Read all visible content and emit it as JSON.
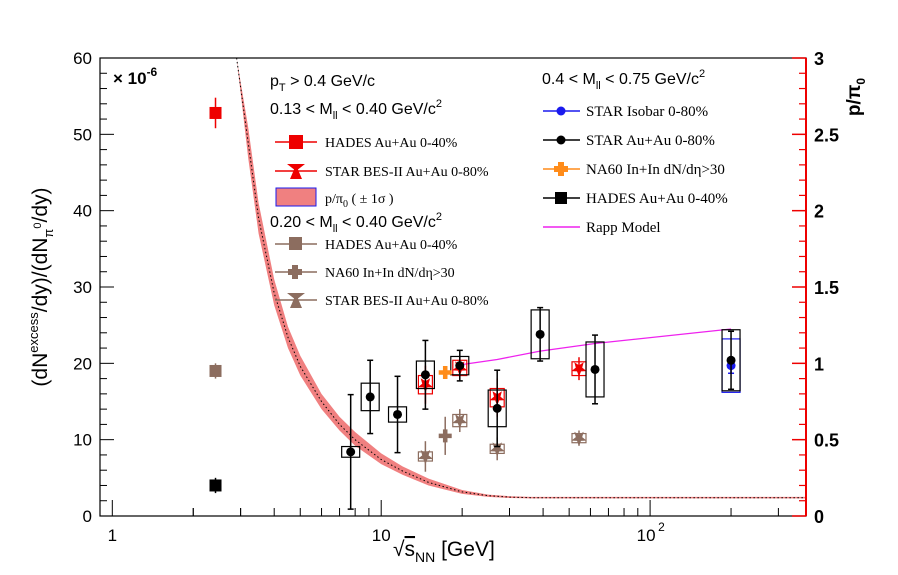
{
  "chart_data": {
    "type": "scatter",
    "x_axis": {
      "label": "√s_NN [GeV]",
      "label_parts": [
        "√",
        "s",
        "NN",
        " [GeV]"
      ],
      "scale": "log",
      "range": [
        0.9,
        380
      ],
      "tick_labels": [
        "1",
        "10",
        "10",
        "2"
      ]
    },
    "y_axis_left": {
      "label_parts": [
        "(dN",
        "excess",
        "/dy)/(dN",
        "π",
        "0",
        "/dy)"
      ],
      "range": [
        0,
        60
      ],
      "ticks": [
        0,
        10,
        20,
        30,
        40,
        50,
        60
      ],
      "multiplier": "× 10",
      "multiplier_exp": "-6"
    },
    "y_axis_right": {
      "label_parts": [
        "p/π",
        "0"
      ],
      "range": [
        0,
        3
      ],
      "ticks": [
        "0",
        "0.5",
        "1",
        "1.5",
        "2",
        "2.5",
        "3"
      ],
      "color": "#ee0000"
    },
    "headers": {
      "pt_cut": [
        "p",
        "T",
        " > 0.4 GeV/c"
      ],
      "low_mass": [
        "0.13 < M",
        "ll",
        " < 0.40 GeV/c",
        "2"
      ],
      "mid_mass": [
        "0.20 < M",
        "ll",
        " < 0.40 GeV/c",
        "2"
      ],
      "rho_mass": [
        "0.4 < M",
        "ll",
        " < 0.75 GeV/c",
        "2"
      ]
    },
    "legend": {
      "low_mass": [
        "HADES Au+Au 0-40%",
        "STAR BES-II Au+Au 0-80%",
        "p/π",
        "0",
        " ( ± 1σ )"
      ],
      "mid_mass": [
        "HADES Au+Au 0-40%",
        "NA60 In+In dN/dη>30",
        "STAR BES-II Au+Au 0-80%"
      ],
      "rho_mass": [
        "STAR Isobar 0-80%",
        "STAR Au+Au 0-80%",
        "NA60 In+In dN/dη>30",
        "HADES Au+Au 0-40%",
        "Rapp Model"
      ]
    },
    "colors": {
      "red": "#ee0000",
      "brown": "#8c6d5f",
      "black": "#000000",
      "blue": "#1a1aee",
      "orange": "#ff8c1a",
      "rapp": "#ee22ee",
      "band": "#f08080"
    },
    "series": [
      {
        "name": "HADES Au+Au 0-40%",
        "group": "0.13-0.40",
        "marker": "square",
        "color": "#ee0000",
        "points": [
          {
            "x": 2.42,
            "y": 52.8,
            "err": 2
          }
        ]
      },
      {
        "name": "STAR BES-II Au+Au 0-80%",
        "group": "0.13-0.40",
        "marker": "star",
        "color": "#ee0000",
        "points": [
          {
            "x": 14.6,
            "y": 17.2,
            "err": 2.5,
            "sys": 1.2
          },
          {
            "x": 19.6,
            "y": 19.4,
            "err": 1.5,
            "sys": 1.0
          },
          {
            "x": 27,
            "y": 15.5,
            "err": 2.5,
            "sys": 1.2
          },
          {
            "x": 54.4,
            "y": 19.3,
            "err": 1.5,
            "sys": 0.9
          }
        ]
      },
      {
        "name": "HADES Au+Au 0-40%",
        "group": "0.20-0.40",
        "marker": "square",
        "color": "#8c6d5f",
        "points": [
          {
            "x": 2.42,
            "y": 19,
            "err": 1
          }
        ]
      },
      {
        "name": "NA60 In+In dN/dη>30",
        "group": "0.20-0.40",
        "marker": "cross",
        "color": "#8c6d5f",
        "points": [
          {
            "x": 17.3,
            "y": 10.5,
            "err": 2.5
          }
        ]
      },
      {
        "name": "STAR BES-II Au+Au 0-80%",
        "group": "0.20-0.40",
        "marker": "star",
        "color": "#8c6d5f",
        "points": [
          {
            "x": 14.6,
            "y": 7.8,
            "err": 2,
            "sys": 0.6
          },
          {
            "x": 19.6,
            "y": 12.5,
            "err": 1.5,
            "sys": 0.8
          },
          {
            "x": 27,
            "y": 8.8,
            "err": 1.5,
            "sys": 0.6
          },
          {
            "x": 54.4,
            "y": 10.2,
            "err": 1,
            "sys": 0.6
          }
        ]
      },
      {
        "name": "STAR Isobar 0-80%",
        "group": "0.4-0.75",
        "marker": "circle",
        "color": "#1a1aee",
        "points": [
          {
            "x": 200,
            "y": 19.7,
            "err": 1,
            "sys": 3.5
          }
        ]
      },
      {
        "name": "STAR Au+Au 0-80%",
        "group": "0.4-0.75",
        "marker": "circle",
        "color": "#000000",
        "points": [
          {
            "x": 7.7,
            "y": 8.4,
            "err": 7.5,
            "sys": 0.7
          },
          {
            "x": 9.1,
            "y": 15.6,
            "err": 4.8,
            "sys": 1.8
          },
          {
            "x": 11.5,
            "y": 13.3,
            "err": 5,
            "sys": 1
          },
          {
            "x": 14.6,
            "y": 18.5,
            "err": 4.5,
            "sys": 1.8
          },
          {
            "x": 19.6,
            "y": 19.7,
            "err": 2,
            "sys": 1.2
          },
          {
            "x": 27,
            "y": 14.1,
            "err": 5,
            "sys": 2.4
          },
          {
            "x": 39,
            "y": 23.8,
            "err": 3.5,
            "sys": 3.2
          },
          {
            "x": 62.4,
            "y": 19.2,
            "err": 4.5,
            "sys": 3.6
          },
          {
            "x": 200,
            "y": 20.4,
            "err": 3.8,
            "sys": 4
          }
        ]
      },
      {
        "name": "NA60 In+In dN/dη>30",
        "group": "0.4-0.75",
        "marker": "cross",
        "color": "#ff8c1a",
        "points": [
          {
            "x": 17.3,
            "y": 18.8,
            "err": 0.5
          }
        ]
      },
      {
        "name": "HADES Au+Au 0-40%",
        "group": "0.4-0.75",
        "marker": "square",
        "color": "#000000",
        "points": [
          {
            "x": 2.42,
            "y": 4,
            "err": 1
          }
        ]
      }
    ],
    "rapp_model": {
      "x": [
        19.6,
        27,
        39,
        62.4,
        200
      ],
      "y": [
        19.8,
        20.5,
        21.6,
        22.6,
        24.5
      ]
    },
    "p_over_pi0_band": {
      "x": [
        2.9,
        3.2,
        3.5,
        4,
        4.5,
        5,
        6,
        7,
        8,
        10,
        12,
        15,
        20,
        25,
        30,
        36,
        45,
        60,
        100,
        200,
        380
      ],
      "low": [
        3.0,
        2.35,
        1.85,
        1.38,
        1.1,
        0.92,
        0.7,
        0.56,
        0.46,
        0.34,
        0.27,
        0.2,
        0.145,
        0.125,
        0.118,
        0.115,
        0.115,
        0.115,
        0.115,
        0.115,
        0.115
      ],
      "mid": [
        3.0,
        2.45,
        1.95,
        1.46,
        1.17,
        0.98,
        0.75,
        0.6,
        0.5,
        0.37,
        0.295,
        0.22,
        0.158,
        0.133,
        0.124,
        0.12,
        0.12,
        0.12,
        0.12,
        0.12,
        0.12
      ],
      "high": [
        3.0,
        2.55,
        2.05,
        1.55,
        1.24,
        1.05,
        0.8,
        0.65,
        0.55,
        0.41,
        0.325,
        0.245,
        0.17,
        0.14,
        0.13,
        0.125,
        0.125,
        0.125,
        0.125,
        0.125,
        0.125
      ]
    }
  }
}
